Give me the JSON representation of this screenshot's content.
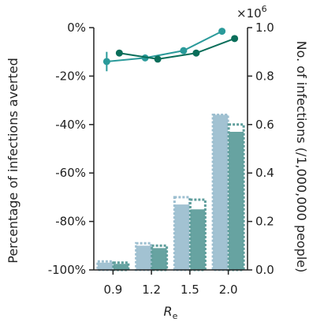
{
  "chart_data": {
    "type": "bar",
    "categories": [
      "0.9",
      "1.2",
      "1.5",
      "2.0"
    ],
    "xlabel": "R",
    "xlabel_sub": "e",
    "y_left": {
      "label": "Percentage of infections averted",
      "ylim": [
        0,
        -100
      ],
      "ticks": [
        "0%",
        "-20%",
        "-40%",
        "-60%",
        "-80%",
        "-100%"
      ],
      "inverted": true
    },
    "y_right": {
      "label": "No. of infections (/1,000,000 people)",
      "ylim": [
        0,
        1.0
      ],
      "ticks": [
        "0.0",
        "0.2",
        "0.4",
        "0.6",
        "0.8",
        "1.0"
      ],
      "multiplier": "×10",
      "multiplier_exp": "6"
    },
    "bar_series": [
      {
        "color": "#9dbfd0",
        "values": [
          0.03,
          0.1,
          0.27,
          0.64
        ],
        "outline_values": [
          0.035,
          0.11,
          0.3,
          0.64
        ]
      },
      {
        "color": "#5f9e9c",
        "values": [
          0.025,
          0.09,
          0.25,
          0.57
        ],
        "outline_values": [
          0.03,
          0.1,
          0.29,
          0.6
        ]
      }
    ],
    "line_series": [
      {
        "color": "#2a9a9a",
        "values": [
          -14,
          -12.5,
          -9.5,
          -1.5
        ],
        "errors": [
          4,
          0,
          0,
          0
        ]
      },
      {
        "color": "#0a6e5a",
        "values": [
          -10.5,
          -13,
          -10.5,
          -4.5
        ],
        "errors": [
          0,
          0,
          0,
          0
        ]
      }
    ],
    "grid": false,
    "legend": "none"
  }
}
